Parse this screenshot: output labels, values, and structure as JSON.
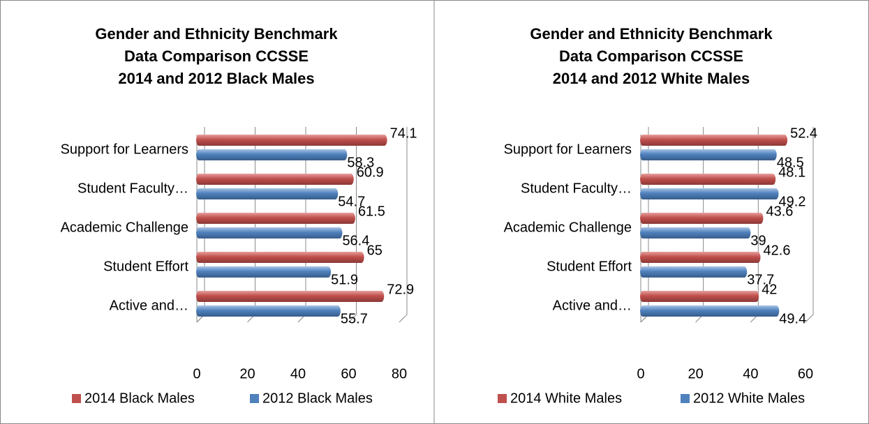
{
  "chart_data": [
    {
      "type": "bar",
      "title": [
        "Gender and Ethnicity Benchmark",
        "Data Comparison CCSSE",
        "2014 and 2012 Black Males"
      ],
      "categories": [
        "Support for Learners",
        "Student Faculty…",
        "Academic Challenge",
        "Student Effort",
        "Active and…"
      ],
      "series": [
        {
          "name": "2014 Black Males",
          "color": "#c0504d",
          "values": [
            74.1,
            60.9,
            61.5,
            65,
            72.9
          ]
        },
        {
          "name": "2012 Black Males",
          "color": "#4f81bd",
          "values": [
            58.3,
            54.7,
            56.4,
            51.9,
            55.7
          ]
        }
      ],
      "xlim": [
        0,
        80
      ],
      "xticks": [
        0,
        20,
        40,
        60,
        80
      ],
      "grid": true,
      "legend": "bottom"
    },
    {
      "type": "bar",
      "title": [
        "Gender and Ethnicity Benchmark",
        "Data Comparison CCSSE",
        "2014 and 2012 White Males"
      ],
      "categories": [
        "Support for Learners",
        "Student Faculty…",
        "Academic Challenge",
        "Student Effort",
        "Active and…"
      ],
      "series": [
        {
          "name": "2014 White Males",
          "color": "#c0504d",
          "values": [
            52.4,
            48.1,
            43.6,
            42.6,
            42
          ]
        },
        {
          "name": "2012 White Males",
          "color": "#4f81bd",
          "values": [
            48.5,
            49.2,
            39,
            37.7,
            49.4
          ]
        }
      ],
      "xlim": [
        0,
        60
      ],
      "xticks": [
        0,
        20,
        40,
        60
      ],
      "grid": true,
      "legend": "bottom"
    }
  ]
}
